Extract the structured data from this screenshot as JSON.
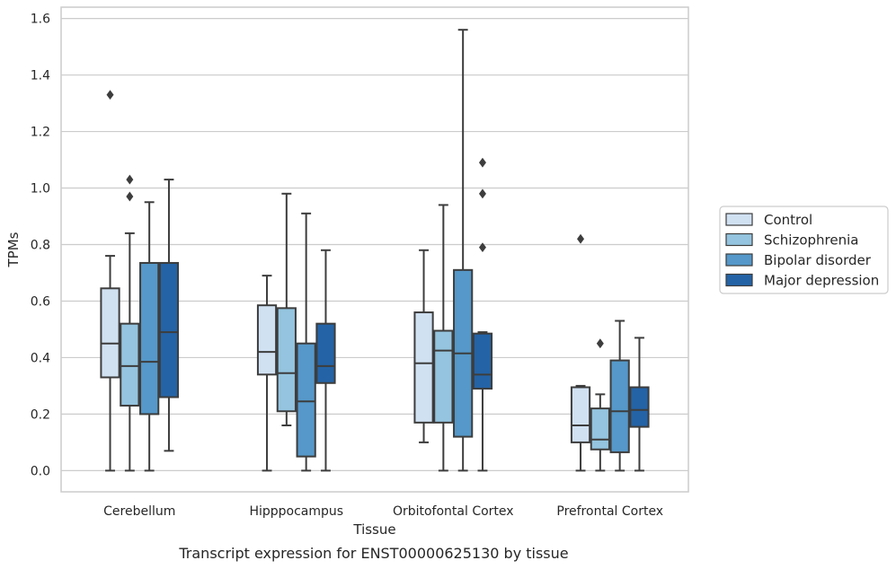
{
  "chart_data": {
    "type": "box",
    "caption": "Transcript expression for ENST00000625130 by tissue",
    "xlabel": "Tissue",
    "ylabel": "TPMs",
    "ylim": [
      -0.075,
      1.64
    ],
    "yticks": [
      "0.0",
      "0.2",
      "0.4",
      "0.6",
      "0.8",
      "1.0",
      "1.2",
      "1.4",
      "1.6"
    ],
    "grid": true,
    "legend_position": "right",
    "categories": [
      "Cerebellum",
      "Hipppocampus",
      "Orbitofontal Cortex",
      "Prefrontal Cortex"
    ],
    "series": [
      {
        "name": "Control",
        "color": "#d0e1f2",
        "boxes": [
          {
            "whisker_low": 0.0,
            "q1": 0.33,
            "median": 0.45,
            "q3": 0.645,
            "whisker_high": 0.76,
            "outliers": [
              1.33
            ]
          },
          {
            "whisker_low": 0.0,
            "q1": 0.34,
            "median": 0.42,
            "q3": 0.585,
            "whisker_high": 0.69,
            "outliers": []
          },
          {
            "whisker_low": 0.1,
            "q1": 0.17,
            "median": 0.38,
            "q3": 0.56,
            "whisker_high": 0.78,
            "outliers": []
          },
          {
            "whisker_low": 0.0,
            "q1": 0.1,
            "median": 0.16,
            "q3": 0.295,
            "whisker_high": 0.3,
            "outliers": [
              0.82
            ]
          }
        ]
      },
      {
        "name": "Schizophrenia",
        "color": "#94c4df",
        "boxes": [
          {
            "whisker_low": 0.0,
            "q1": 0.23,
            "median": 0.37,
            "q3": 0.52,
            "whisker_high": 0.84,
            "outliers": [
              0.97,
              1.03
            ]
          },
          {
            "whisker_low": 0.16,
            "q1": 0.21,
            "median": 0.345,
            "q3": 0.575,
            "whisker_high": 0.98,
            "outliers": []
          },
          {
            "whisker_low": 0.0,
            "q1": 0.17,
            "median": 0.425,
            "q3": 0.495,
            "whisker_high": 0.94,
            "outliers": []
          },
          {
            "whisker_low": 0.0,
            "q1": 0.075,
            "median": 0.11,
            "q3": 0.22,
            "whisker_high": 0.27,
            "outliers": [
              0.45
            ]
          }
        ]
      },
      {
        "name": "Bipolar disorder",
        "color": "#5598c9",
        "boxes": [
          {
            "whisker_low": 0.0,
            "q1": 0.2,
            "median": 0.385,
            "q3": 0.735,
            "whisker_high": 0.95,
            "outliers": []
          },
          {
            "whisker_low": 0.0,
            "q1": 0.05,
            "median": 0.245,
            "q3": 0.45,
            "whisker_high": 0.91,
            "outliers": []
          },
          {
            "whisker_low": 0.0,
            "q1": 0.12,
            "median": 0.415,
            "q3": 0.71,
            "whisker_high": 1.56,
            "outliers": []
          },
          {
            "whisker_low": 0.0,
            "q1": 0.065,
            "median": 0.21,
            "q3": 0.39,
            "whisker_high": 0.53,
            "outliers": []
          }
        ]
      },
      {
        "name": "Major depression",
        "color": "#2463a6",
        "boxes": [
          {
            "whisker_low": 0.07,
            "q1": 0.26,
            "median": 0.49,
            "q3": 0.735,
            "whisker_high": 1.03,
            "outliers": []
          },
          {
            "whisker_low": 0.0,
            "q1": 0.31,
            "median": 0.37,
            "q3": 0.52,
            "whisker_high": 0.78,
            "outliers": []
          },
          {
            "whisker_low": 0.0,
            "q1": 0.29,
            "median": 0.34,
            "q3": 0.485,
            "whisker_high": 0.49,
            "outliers": [
              0.79,
              0.98,
              1.09
            ]
          },
          {
            "whisker_low": 0.0,
            "q1": 0.155,
            "median": 0.215,
            "q3": 0.295,
            "whisker_high": 0.47,
            "outliers": []
          }
        ]
      }
    ]
  }
}
